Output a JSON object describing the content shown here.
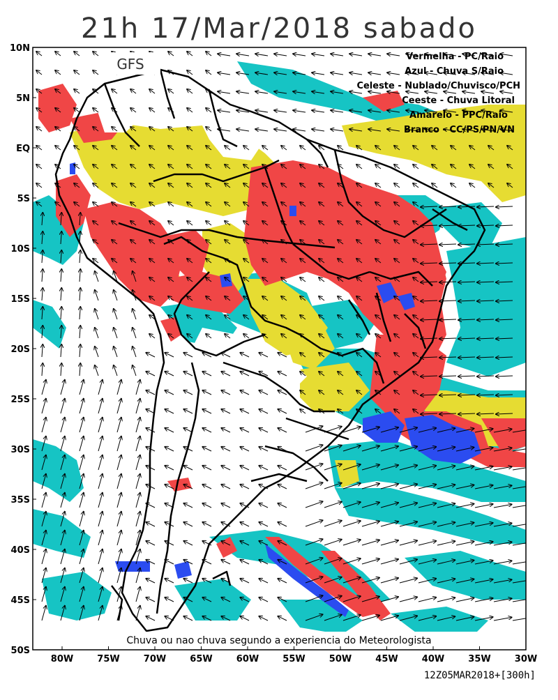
{
  "title": "21h 17/Mar/2018 sabado",
  "model": "GFS",
  "legend": [
    "Vermelha  - PC/Raio",
    "Azul - Chuva S/Raio",
    "Celeste - Nublado/Chuvisco/PCH",
    "Ceeste - Chuva Litoral",
    "Amarelo - PPC/Raio",
    "Branco - CC/PS/PN/VN"
  ],
  "caption": "Chuva ou nao chuva segundo a experiencia do Meteorologista",
  "run_info": "12Z05MAR2018+[300h]",
  "lat_labels": [
    "10N",
    "5N",
    "EQ",
    "5S",
    "10S",
    "15S",
    "20S",
    "25S",
    "30S",
    "35S",
    "40S",
    "45S",
    "50S"
  ],
  "lon_labels": [
    "80W",
    "75W",
    "70W",
    "65W",
    "60W",
    "55W",
    "50W",
    "45W",
    "40W",
    "35W",
    "30W"
  ],
  "colors": {
    "red": "#f04646",
    "blue": "#2b4cf0",
    "cyan": "#16c4c4",
    "yellow": "#e6dc32",
    "white": "#ffffff"
  }
}
